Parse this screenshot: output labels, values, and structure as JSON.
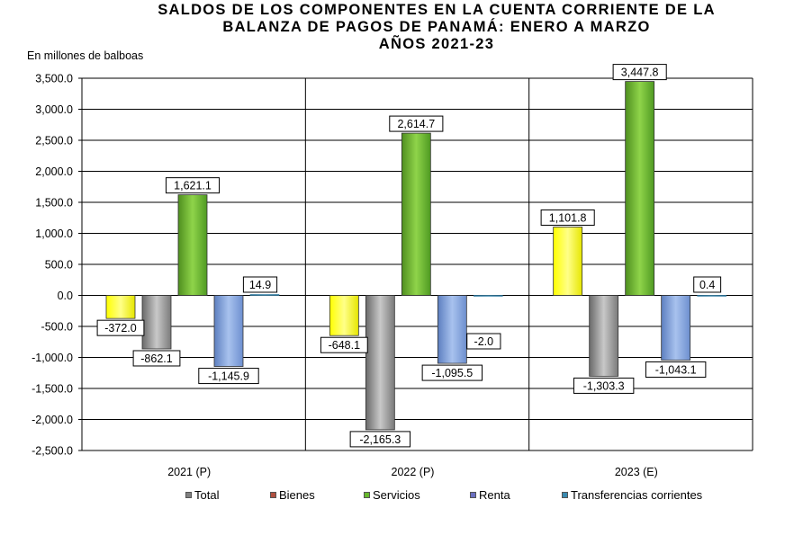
{
  "chart_data": {
    "type": "bar",
    "title_lines": [
      "SALDOS DE LOS COMPONENTES EN LA CUENTA CORRIENTE DE LA",
      "BALANZA DE PAGOS DE PANAMÁ: ENERO A MARZO",
      "AÑOS 2021-23"
    ],
    "ylabel": "En millones de balboas",
    "xlabel": "",
    "ylim": [
      -2500,
      3500
    ],
    "ytick_step": 500,
    "ytick_labels": [
      "3,500.0",
      "3,000.0",
      "2,500.0",
      "2,000.0",
      "1,500.0",
      "1,000.0",
      "500.0",
      "0.0",
      "-500.0",
      "-1,000.0",
      "-1,500.0",
      "-2,000.0",
      "-2,500.0"
    ],
    "categories": [
      "2021 (P)",
      "2022 (P)",
      "2023 (E)"
    ],
    "grid": true,
    "legend_position": "bottom",
    "series": [
      {
        "name": "Total",
        "values": [
          -372.0,
          -648.1,
          1101.8
        ],
        "labels": [
          "-372.0",
          "-648.1",
          "1,101.8"
        ],
        "color": "#ffff00",
        "legend_color": "#808080"
      },
      {
        "name": "Bienes",
        "values": [
          -862.1,
          -2165.3,
          -1303.3
        ],
        "labels": [
          "-862.1",
          "-2,165.3",
          "-1,303.3"
        ],
        "color": "#a0a0a0",
        "legend_color": "#b05040"
      },
      {
        "name": "Servicios",
        "values": [
          1621.1,
          2614.7,
          3447.8
        ],
        "labels": [
          "1,621.1",
          "2,614.7",
          "3,447.8"
        ],
        "color": "#66b82c",
        "legend_color": "#66b82c"
      },
      {
        "name": "Renta",
        "values": [
          -1145.9,
          -1095.5,
          -1043.1
        ],
        "labels": [
          "-1,145.9",
          "-1,095.5",
          "-1,043.1"
        ],
        "color": "#7f9fd8",
        "legend_color": "#6a6fc0"
      },
      {
        "name": "Transferencias corrientes",
        "values": [
          14.9,
          -2.0,
          0.4
        ],
        "labels": [
          "14.9",
          "-2.0",
          "0.4"
        ],
        "color": "#3a8ab0",
        "legend_color": "#3a8ab0"
      }
    ]
  }
}
